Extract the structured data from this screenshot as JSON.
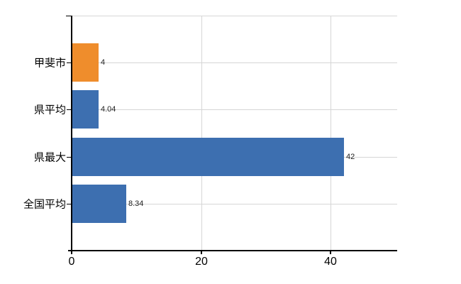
{
  "chart_data": {
    "type": "bar",
    "orientation": "horizontal",
    "title": "",
    "xlabel": "",
    "ylabel": "",
    "categories": [
      "甲斐市",
      "県平均",
      "県最大",
      "全国平均"
    ],
    "values": [
      4,
      4.04,
      42,
      8.34
    ],
    "data_labels": [
      "4",
      "4.04",
      "42",
      "8.34"
    ],
    "bar_colors": [
      "#ef8d2c",
      "#3d6fb0",
      "#3d6fb0",
      "#3d6fb0"
    ],
    "x_ticks": [
      0,
      20,
      40
    ],
    "x_tick_labels": [
      "0",
      "20",
      "40"
    ],
    "xlim": [
      0,
      50.3
    ],
    "grid": true,
    "grid_color": "#d6d6d6",
    "axis_color": "#000000",
    "background": "#ffffff",
    "legend_position": "none"
  }
}
